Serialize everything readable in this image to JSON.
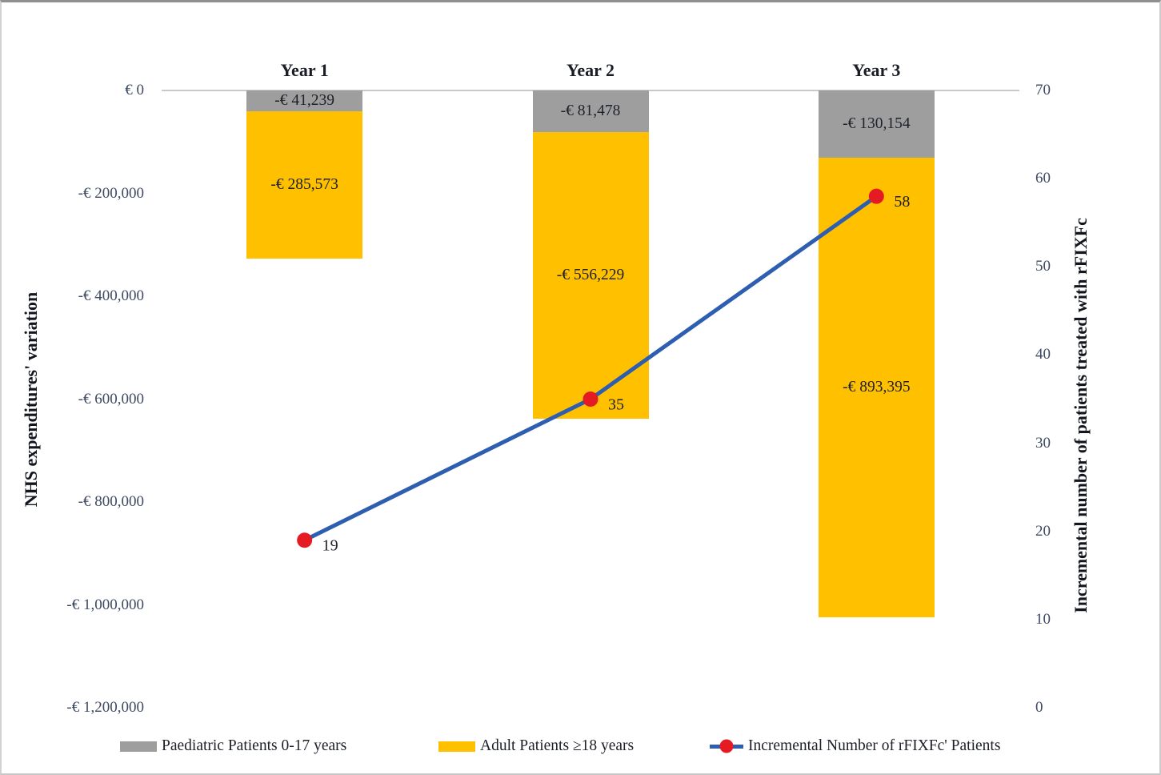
{
  "chart_data": {
    "type": "combo-stacked-bar-line",
    "categories": [
      "Year 1",
      "Year 2",
      "Year 3"
    ],
    "bar_series": [
      {
        "name": "Paediatric Patients 0-17 years",
        "color": "#9e9e9e",
        "values": [
          -41239,
          -81478,
          -130154
        ],
        "labels": [
          "-€ 41,239",
          "-€ 81,478",
          "-€ 130,154"
        ]
      },
      {
        "name": "Adult Patients ≥18 years",
        "color": "#ffc000",
        "values": [
          -285573,
          -556229,
          -893395
        ],
        "labels": [
          "-€ 285,573",
          "-€ 556,229",
          "-€ 893,395"
        ]
      }
    ],
    "line_series": {
      "name": "Incremental Number of rFIXFc' Patients",
      "color": "#2e5eb0",
      "marker_color": "#e41b23",
      "values": [
        19,
        35,
        58
      ],
      "labels": [
        "19",
        "35",
        "58"
      ]
    },
    "left_axis": {
      "title": "NHS expenditures' variation",
      "min": -1200000,
      "max": 0,
      "tick_labels": [
        "€ 0",
        "-€ 200,000",
        "-€ 400,000",
        "-€ 600,000",
        "-€ 800,000",
        "-€ 1,000,000",
        "-€ 1,200,000"
      ]
    },
    "right_axis": {
      "title": "Incremental number of patients treated with rFIXFc",
      "min": 0,
      "max": 70,
      "tick_labels": [
        "70",
        "60",
        "50",
        "40",
        "30",
        "20",
        "10",
        "0"
      ]
    },
    "gridline": {
      "show_zero_line_only": true,
      "color": "#c9c9c9"
    },
    "legend": {
      "position": "bottom",
      "items": [
        {
          "type": "bar",
          "color": "#9e9e9e",
          "label": "Paediatric Patients 0-17 years"
        },
        {
          "type": "bar",
          "color": "#ffc000",
          "label": "Adult Patients ≥18 years"
        },
        {
          "type": "line-marker",
          "line_color": "#2e5eb0",
          "marker_color": "#e41b23",
          "label": "Incremental Number of rFIXFc' Patients"
        }
      ]
    }
  }
}
